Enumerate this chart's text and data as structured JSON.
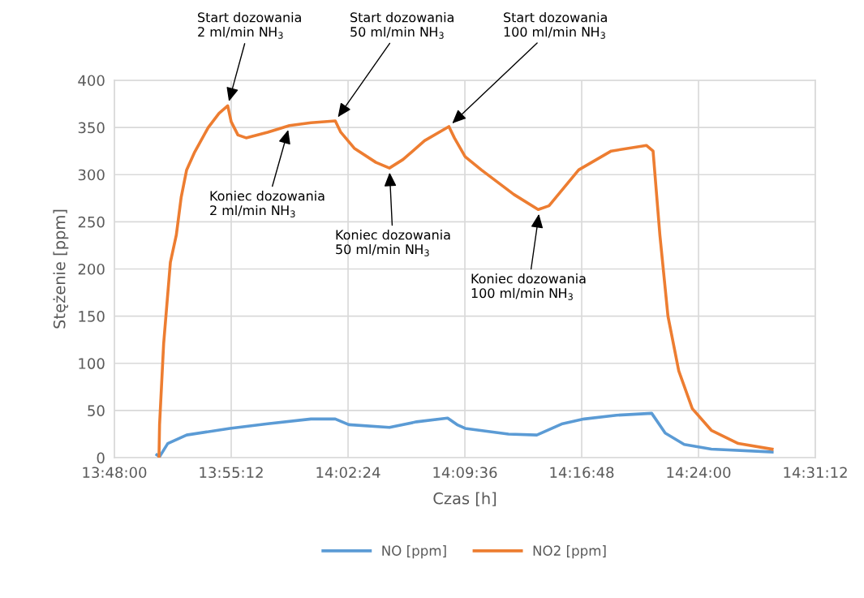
{
  "chart_data": {
    "type": "line",
    "xlabel": "Czas [h]",
    "ylabel": "Stężenie [ppm]",
    "xlim": [
      13.8,
      14.52
    ],
    "xticks": [
      {
        "value": 13.8,
        "label": "13:48:00"
      },
      {
        "value": 13.92,
        "label": "13:55:12"
      },
      {
        "value": 14.04,
        "label": "14:02:24"
      },
      {
        "value": 14.16,
        "label": "14:09:36"
      },
      {
        "value": 14.28,
        "label": "14:16:48"
      },
      {
        "value": 14.4,
        "label": "14:24:00"
      },
      {
        "value": 14.52,
        "label": "14:31:12"
      }
    ],
    "ylim": [
      0,
      400
    ],
    "yticks": [
      0,
      50,
      100,
      150,
      200,
      250,
      300,
      350,
      400
    ],
    "grid": true,
    "legend": "bottom",
    "marker": "none",
    "line_style": "solid",
    "series": [
      {
        "name": "NO [ppm]",
        "color": "#5b9bd5",
        "x": [
          13.8436,
          13.8464,
          13.8548,
          13.8742,
          13.9186,
          13.9575,
          14.0019,
          14.0269,
          14.0408,
          14.0825,
          14.1103,
          14.1423,
          14.1519,
          14.1603,
          14.2048,
          14.2339,
          14.2603,
          14.2825,
          14.3158,
          14.3519,
          14.3658,
          14.3853,
          14.4131,
          14.4756
        ],
        "values": [
          3,
          1,
          15,
          24,
          31,
          36,
          41,
          41,
          35,
          32,
          38,
          42,
          35,
          31,
          25,
          24,
          36,
          41,
          45,
          47,
          26,
          14,
          9,
          6
        ]
      },
      {
        "name": "NO2 [ppm]",
        "color": "#ed7d31",
        "x": [
          13.8458,
          13.8464,
          13.8506,
          13.8575,
          13.8636,
          13.8686,
          13.8742,
          13.8825,
          13.8964,
          13.9075,
          13.9164,
          13.92,
          13.9269,
          13.9353,
          13.9575,
          13.9798,
          14.0019,
          14.0269,
          14.0325,
          14.0464,
          14.0686,
          14.0825,
          14.0964,
          14.1186,
          14.1436,
          14.1492,
          14.1603,
          14.1769,
          14.2103,
          14.2353,
          14.2464,
          14.2769,
          14.3103,
          14.3464,
          14.3533,
          14.3603,
          14.3686,
          14.3797,
          14.3936,
          14.4131,
          14.4408,
          14.4756
        ],
        "values": [
          0,
          35,
          121,
          207,
          236,
          276,
          305,
          324,
          350,
          365,
          373,
          356,
          342,
          339,
          345,
          352,
          355,
          357,
          345,
          328,
          313,
          307,
          316,
          336,
          351,
          339,
          319,
          305,
          279,
          263,
          267,
          305,
          325,
          331,
          325,
          236,
          150,
          92,
          52,
          29,
          15,
          9
        ]
      }
    ],
    "annotations": [
      {
        "text": "Start dozowania\n2 ml/min NH$_{3}$",
        "x": 13.9164,
        "y": 373
      },
      {
        "text": "Start dozowania\n50 ml/min NH$_{3}$",
        "x": 14.0269,
        "y": 357
      },
      {
        "text": "Start dozowania\n100 ml/min NH$_{3}$",
        "x": 14.1436,
        "y": 351
      },
      {
        "text": "Koniec dozowania\n2 ml/min NH$_{3}$",
        "x": 13.9798,
        "y": 352
      },
      {
        "text": "Koniec dozowania\n50 ml/min NH$_{3}$",
        "x": 14.0825,
        "y": 307
      },
      {
        "text": "Koniec dozowania\n100 ml/min NH$_{3}$",
        "x": 14.2367,
        "y": 263
      }
    ]
  }
}
